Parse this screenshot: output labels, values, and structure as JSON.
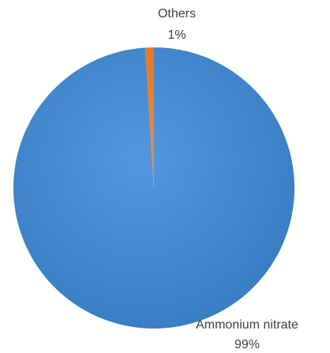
{
  "chart_data": {
    "type": "pie",
    "categories": [
      "Ammonium nitrate",
      "Others"
    ],
    "values": [
      99,
      1
    ],
    "value_labels": [
      "99%",
      "1%"
    ],
    "colors": [
      "#3c8ad8",
      "#f47b20"
    ]
  }
}
